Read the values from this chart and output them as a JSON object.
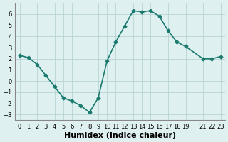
{
  "x": [
    0,
    1,
    2,
    3,
    4,
    5,
    6,
    7,
    8,
    9,
    10,
    11,
    12,
    13,
    14,
    15,
    16,
    17,
    18,
    19,
    21,
    22,
    23
  ],
  "y": [
    2.3,
    2.1,
    1.5,
    0.5,
    -0.5,
    -1.5,
    -1.8,
    -2.2,
    -2.8,
    -1.5,
    1.8,
    3.5,
    4.9,
    6.3,
    6.2,
    6.3,
    5.8,
    4.5,
    3.5,
    3.1,
    2.0,
    2.0,
    2.2
  ],
  "line_color": "#1a7a6e",
  "marker": "D",
  "marker_size": 2.5,
  "background_color": "#dff0f0",
  "grid_color": "#b0cece",
  "xlabel": "Humidex (Indice chaleur)",
  "xlabel_fontsize": 8,
  "xlabel_fontweight": "bold",
  "xlim": [
    -0.5,
    23.5
  ],
  "ylim": [
    -3.5,
    7.0
  ],
  "yticks": [
    -3,
    -2,
    -1,
    0,
    1,
    2,
    3,
    4,
    5,
    6
  ],
  "xticks": [
    0,
    1,
    2,
    3,
    4,
    5,
    6,
    7,
    8,
    9,
    10,
    11,
    12,
    13,
    14,
    15,
    16,
    17,
    18,
    19,
    20,
    21,
    22,
    23
  ],
  "xtick_labels": [
    "0",
    "1",
    "2",
    "3",
    "4",
    "5",
    "6",
    "7",
    "8",
    "9",
    "10",
    "11",
    "12",
    "13",
    "14",
    "15",
    "16",
    "17",
    "18",
    "19",
    "",
    "21",
    "22",
    "23"
  ],
  "tick_fontsize": 6,
  "linewidth": 1.2
}
